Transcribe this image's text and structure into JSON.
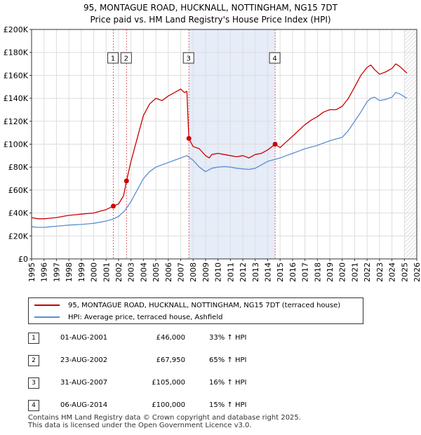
{
  "title_line1": "95, MONTAGUE ROAD, HUCKNALL, NOTTINGHAM, NG15 7DT",
  "title_line2": "Price paid vs. HM Land Registry's House Price Index (HPI)",
  "legend": {
    "property": "95, MONTAGUE ROAD, HUCKNALL, NOTTINGHAM, NG15 7DT (terraced house)",
    "hpi": "HPI: Average price, terraced house, Ashfield"
  },
  "transactions": [
    {
      "num": "1",
      "date": "01-AUG-2001",
      "price": "£46,000",
      "hpi": "33% ↑ HPI"
    },
    {
      "num": "2",
      "date": "23-AUG-2002",
      "price": "£67,950",
      "hpi": "65% ↑ HPI"
    },
    {
      "num": "3",
      "date": "31-AUG-2007",
      "price": "£105,000",
      "hpi": "16% ↑ HPI"
    },
    {
      "num": "4",
      "date": "06-AUG-2014",
      "price": "£100,000",
      "hpi": "15% ↑ HPI"
    }
  ],
  "footer_line1": "Contains HM Land Registry data © Crown copyright and database right 2025.",
  "footer_line2": "This data is licensed under the Open Government Licence v3.0.",
  "colors": {
    "property": "#cc0000",
    "hpi": "#5b8fcf",
    "shade": "#e6ecf8",
    "vline": "#e06060",
    "grid": "#dddddd"
  },
  "chart_data": {
    "type": "line",
    "title": "95, MONTAGUE ROAD, HUCKNALL, NOTTINGHAM, NG15 7DT - Price paid vs. HM Land Registry's House Price Index (HPI)",
    "xlabel": "",
    "ylabel": "",
    "xlim": [
      1995.0,
      2026.0
    ],
    "ylim": [
      0,
      200000
    ],
    "yticks": [
      0,
      20000,
      40000,
      60000,
      80000,
      100000,
      120000,
      140000,
      160000,
      180000,
      200000
    ],
    "ytick_labels": [
      "£0",
      "£20K",
      "£40K",
      "£60K",
      "£80K",
      "£100K",
      "£120K",
      "£140K",
      "£160K",
      "£180K",
      "£200K"
    ],
    "xticks": [
      1995,
      1996,
      1997,
      1998,
      1999,
      2000,
      2001,
      2002,
      2003,
      2004,
      2005,
      2006,
      2007,
      2008,
      2009,
      2010,
      2011,
      2012,
      2013,
      2014,
      2015,
      2016,
      2017,
      2018,
      2019,
      2020,
      2021,
      2022,
      2023,
      2024,
      2025,
      2026
    ],
    "xtick_labels": [
      "1995",
      "1996",
      "1997",
      "1998",
      "1999",
      "2000",
      "2001",
      "2002",
      "2003",
      "2004",
      "2005",
      "2006",
      "2007",
      "2008",
      "2009",
      "2010",
      "2011",
      "2012",
      "2013",
      "2014",
      "2015",
      "2016",
      "2017",
      "2018",
      "2019",
      "2020",
      "2021",
      "2022",
      "2023",
      "2024",
      "2025",
      "2026"
    ],
    "grid": true,
    "shaded_region": [
      2007.67,
      2014.6
    ],
    "hatched_region": [
      2025.0,
      2026.0
    ],
    "sales": [
      {
        "label": "1",
        "x": 2001.58,
        "y": 46000
      },
      {
        "label": "2",
        "x": 2002.64,
        "y": 67950
      },
      {
        "label": "3",
        "x": 2007.66,
        "y": 105000
      },
      {
        "label": "4",
        "x": 2014.6,
        "y": 100000
      }
    ],
    "series": [
      {
        "name": "95, MONTAGUE ROAD, HUCKNALL, NOTTINGHAM, NG15 7DT (terraced house)",
        "x": [
          1995.0,
          1995.5,
          1996.0,
          1996.5,
          1997.0,
          1997.5,
          1998.0,
          1998.5,
          1999.0,
          1999.5,
          2000.0,
          2000.5,
          2001.0,
          2001.58,
          2002.0,
          2002.4,
          2002.64,
          2003.0,
          2003.5,
          2004.0,
          2004.5,
          2005.0,
          2005.5,
          2006.0,
          2006.5,
          2007.0,
          2007.3,
          2007.5,
          2007.6,
          2007.66,
          2007.8,
          2008.0,
          2008.5,
          2009.0,
          2009.3,
          2009.5,
          2010.0,
          2010.5,
          2011.0,
          2011.5,
          2012.0,
          2012.5,
          2013.0,
          2013.5,
          2014.0,
          2014.6,
          2015.0,
          2015.5,
          2016.0,
          2016.5,
          2017.0,
          2017.5,
          2018.0,
          2018.5,
          2019.0,
          2019.5,
          2020.0,
          2020.5,
          2021.0,
          2021.5,
          2022.0,
          2022.3,
          2022.6,
          2023.0,
          2023.5,
          2024.0,
          2024.3,
          2024.6,
          2024.9,
          2025.2
        ],
        "values": [
          36000,
          35000,
          35000,
          35500,
          36000,
          37000,
          38000,
          38500,
          39000,
          39500,
          40000,
          41500,
          43000,
          46000,
          48000,
          55000,
          67950,
          85000,
          105000,
          125000,
          135000,
          140000,
          138000,
          142000,
          145000,
          148000,
          145000,
          146000,
          120000,
          105000,
          102000,
          98000,
          96000,
          90000,
          88000,
          91000,
          92000,
          91000,
          90000,
          89000,
          90000,
          88000,
          91000,
          92000,
          95000,
          100000,
          97000,
          102000,
          107000,
          112000,
          117000,
          121000,
          124000,
          128000,
          130000,
          130000,
          133000,
          140000,
          150000,
          160000,
          167000,
          169000,
          165000,
          161000,
          163000,
          166000,
          170000,
          168000,
          165000,
          162000
        ]
      },
      {
        "name": "HPI: Average price, terraced house, Ashfield",
        "x": [
          1995.0,
          1995.5,
          1996.0,
          1996.5,
          1997.0,
          1997.5,
          1998.0,
          1998.5,
          1999.0,
          1999.5,
          2000.0,
          2000.5,
          2001.0,
          2001.5,
          2002.0,
          2002.5,
          2003.0,
          2003.5,
          2004.0,
          2004.5,
          2005.0,
          2005.5,
          2006.0,
          2006.5,
          2007.0,
          2007.5,
          2008.0,
          2008.5,
          2009.0,
          2009.5,
          2010.0,
          2010.5,
          2011.0,
          2011.5,
          2012.0,
          2012.5,
          2013.0,
          2013.5,
          2014.0,
          2014.5,
          2015.0,
          2015.5,
          2016.0,
          2016.5,
          2017.0,
          2017.5,
          2018.0,
          2018.5,
          2019.0,
          2019.5,
          2020.0,
          2020.5,
          2021.0,
          2021.5,
          2022.0,
          2022.3,
          2022.6,
          2023.0,
          2023.5,
          2024.0,
          2024.3,
          2024.6,
          2024.9,
          2025.2
        ],
        "values": [
          28000,
          27500,
          27500,
          28000,
          28500,
          29000,
          29500,
          29800,
          30000,
          30500,
          31000,
          32000,
          33000,
          34500,
          37000,
          42000,
          50000,
          60000,
          70000,
          76000,
          80000,
          82000,
          84000,
          86000,
          88000,
          90000,
          86000,
          80000,
          76000,
          79000,
          80000,
          80500,
          80000,
          79000,
          78500,
          78000,
          79000,
          82000,
          85000,
          86500,
          88000,
          90000,
          92000,
          94000,
          96000,
          97500,
          99000,
          101000,
          103000,
          104500,
          106000,
          112000,
          120000,
          128000,
          137000,
          140000,
          141000,
          138000,
          139000,
          141000,
          145000,
          144000,
          142000,
          140000
        ]
      }
    ]
  }
}
